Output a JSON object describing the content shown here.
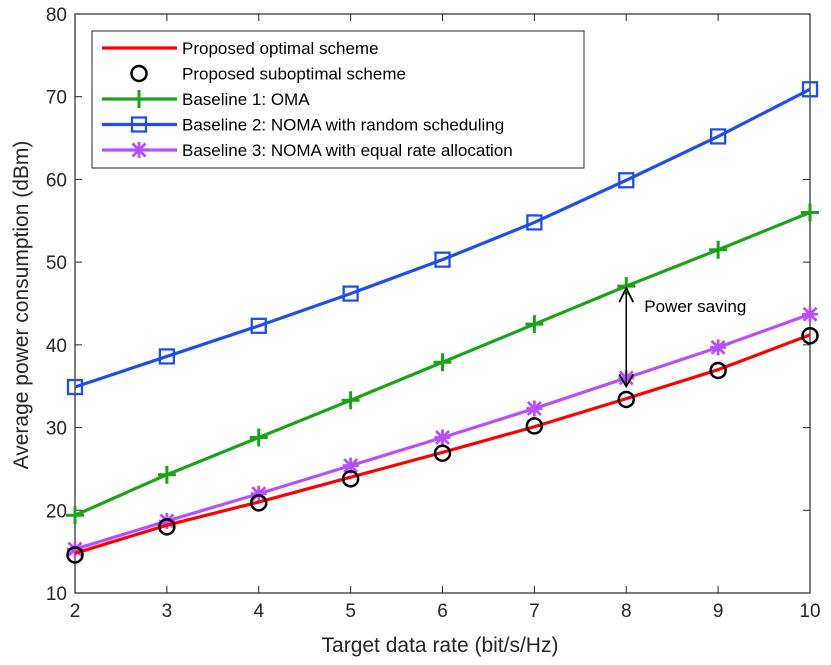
{
  "chart_data": {
    "type": "line",
    "title": "",
    "xlabel": "Target data rate (bit/s/Hz)",
    "ylabel": "Average power consumption (dBm)",
    "xlim": [
      2,
      10
    ],
    "ylim": [
      10,
      80
    ],
    "xticks": [
      2,
      3,
      4,
      5,
      6,
      7,
      8,
      9,
      10
    ],
    "yticks": [
      10,
      20,
      30,
      40,
      50,
      60,
      70,
      80
    ],
    "grid": false,
    "legend_position": "top-left",
    "x": [
      2,
      3,
      4,
      5,
      6,
      7,
      8,
      9,
      10
    ],
    "series": [
      {
        "name": "Proposed optimal scheme",
        "color": "#ff0000",
        "marker": "none",
        "line": true,
        "values": [
          14.8,
          18.2,
          21.0,
          24.0,
          27.0,
          30.1,
          33.5,
          37.0,
          41.2
        ]
      },
      {
        "name": "Proposed suboptimal scheme",
        "color": "#000000",
        "marker": "circle",
        "line": false,
        "values": [
          14.6,
          18.0,
          20.9,
          23.8,
          26.9,
          30.2,
          33.4,
          36.9,
          41.1
        ]
      },
      {
        "name": "Baseline 1: OMA",
        "color": "#1aa31a",
        "marker": "plus",
        "line": true,
        "values": [
          19.4,
          24.3,
          28.8,
          33.3,
          37.9,
          42.5,
          47.1,
          51.5,
          56.0
        ]
      },
      {
        "name": "Baseline 2: NOMA with random scheduling",
        "color": "#1f4fe6",
        "marker": "square",
        "line": true,
        "values": [
          34.9,
          38.6,
          42.3,
          46.2,
          50.3,
          54.8,
          59.9,
          65.2,
          70.9
        ]
      },
      {
        "name": "Baseline 3: NOMA with equal rate allocation",
        "color": "#b84fff",
        "marker": "asterisk",
        "line": true,
        "values": [
          15.3,
          18.7,
          22.0,
          25.4,
          28.8,
          32.3,
          36.0,
          39.7,
          43.7
        ]
      }
    ],
    "annotation": {
      "text": "Power saving",
      "x": 8,
      "y_from": 34.5,
      "y_to": 47.1
    }
  }
}
